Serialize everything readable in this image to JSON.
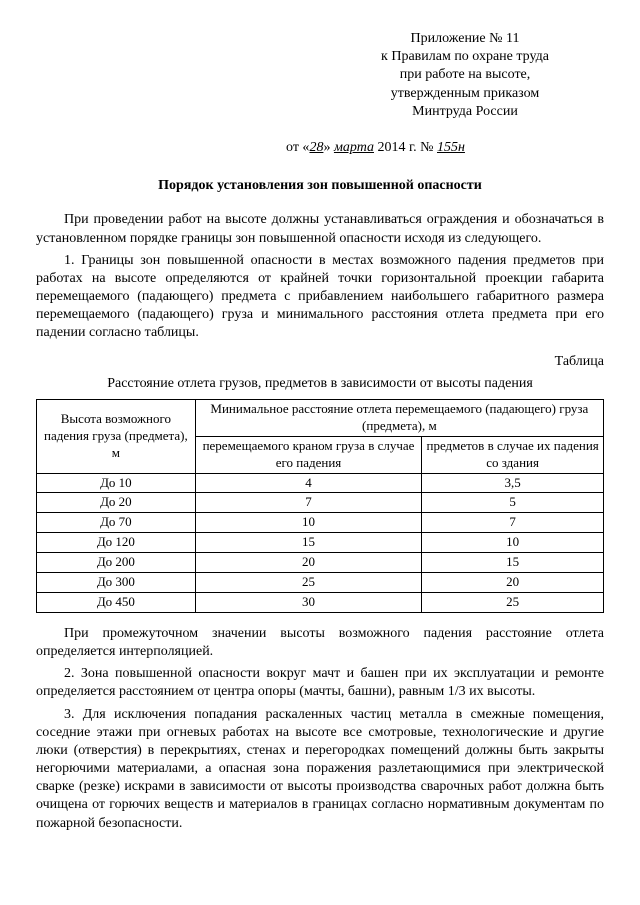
{
  "header": {
    "l1": "Приложение № 11",
    "l2": "к Правилам по охране труда",
    "l3": "при работе на высоте,",
    "l4": "утвержденным приказом",
    "l5": "Минтруда России",
    "date_prefix": "от «",
    "date_day": "28",
    "date_mid": "» ",
    "date_month": "марта",
    "date_suffix": " 2014 г. № ",
    "date_num": "155н"
  },
  "title": "Порядок установления зон повышенной опасности",
  "para1": "При проведении работ на высоте должны устанавливаться ограждения и обозначаться в установленном порядке границы зон повышенной опасности исходя из следующего.",
  "para2": "1. Границы зон повышенной опасности в местах возможного падения предметов при работах на высоте определяются от крайней точки горизонтальной проекции габарита перемещаемого (падающего) предмета с прибавлением наибольшего габаритного размера перемещаемого (падающего) груза и минимального расстояния отлета предмета при его падении согласно таблицы.",
  "table_label": "Таблица",
  "table_caption": "Расстояние отлета грузов, предметов в зависимости от высоты падения",
  "table": {
    "col1_header": "Высота возможного падения груза (предмета), м",
    "col_span_header": "Минимальное расстояние отлета перемещаемого (падающего) груза (предмета), м",
    "col2_header": "перемещаемого краном груза в случае его падения",
    "col3_header": "предметов в случае их падения со здания",
    "rows": [
      {
        "h": "До  10",
        "a": "4",
        "b": "3,5"
      },
      {
        "h": "До  20",
        "a": "7",
        "b": "5"
      },
      {
        "h": "До  70",
        "a": "10",
        "b": "7"
      },
      {
        "h": "До 120",
        "a": "15",
        "b": "10"
      },
      {
        "h": "До 200",
        "a": "20",
        "b": "15"
      },
      {
        "h": "До 300",
        "a": "25",
        "b": "20"
      },
      {
        "h": "До 450",
        "a": "30",
        "b": "25"
      }
    ]
  },
  "para3": "При промежуточном значении высоты возможного падения расстояние отлета определяется интерполяцией.",
  "para4": "2. Зона повышенной опасности вокруг мачт и башен при их эксплуатации и ремонте определяется расстоянием от центра опоры (мачты, башни), равным 1/3 их высоты.",
  "para5": "3. Для исключения попадания раскаленных частиц металла в смежные помещения, соседние этажи при огневых работах на высоте все смотровые, технологические и другие люки (отверстия) в перекрытиях, стенах и перегородках помещений должны быть закрыты негорючими материалами, а опасная зона поражения разлетающимися при электрической сварке (резке) искрами в зависимости от высоты производства сварочных работ должна быть очищена от горючих веществ и материалов в границах согласно нормативным документам по пожарной безопасности."
}
